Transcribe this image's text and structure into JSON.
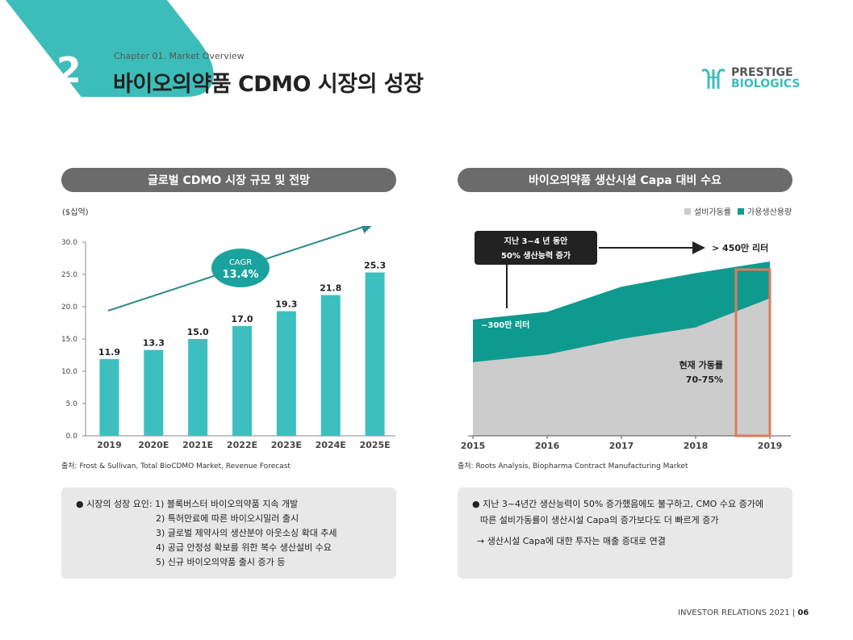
{
  "header": {
    "section_number": "2",
    "chapter": "Chapter 01. Market Overview",
    "title": "바이오의약품 CDMO 시장의 성장",
    "logo_line1": "PRESTIGE",
    "logo_line2": "BIOLOGICS"
  },
  "left_panel": {
    "heading": "글로벌 CDMO 시장 규모 및 전망",
    "unit": "($십억)",
    "cagr_label": "CAGR",
    "cagr_value": "13.4%",
    "source": "출처: Frost & Sullivan, Total BioCDMO Market, Revenue Forecast",
    "note_lines": [
      "● 시장의 성장 요인: 1) 블록버스터 바이오의약품 지속 개발",
      "2) 특허만료에 따른 바이오시밀러 출시",
      "3) 글로벌 제약사의 생산분야 아웃소싱 확대 추세",
      "4) 공급 안정성 확보를 위한 복수 생산설비 수요",
      "5) 신규 바이오의약품 출시 증가 등"
    ]
  },
  "right_panel": {
    "heading": "바이오의약품 생산시설 Capa 대비 수요",
    "legend": [
      {
        "label": "설비가동률",
        "color": "#cccccc"
      },
      {
        "label": "가용생산용량",
        "color": "#0f9a8f"
      }
    ],
    "callout_line1": "지난 3~4 년 동안",
    "callout_line2": "50% 생산능력 증가",
    "arrow_label": "> 450만 리터",
    "capacity_label": "~300만 리터",
    "utilization_line1": "현재 가동률",
    "utilization_line2": "70-75%",
    "source": "출처: Roots Analysis, Biopharma Contract Manufacturing Market",
    "note_lines": [
      "● 지난 3~4년간 생산능력이 50% 증가했음에도 불구하고, CMO 수요 증가에",
      "따른 설비가동률이 생산시설 Capa의 증가보다도 더 빠르게 증가",
      "→ 생산시설 Capa에 대한 투자는 매출 증대로 연결"
    ]
  },
  "chart_data": [
    {
      "type": "bar",
      "categories": [
        "2019",
        "2020E",
        "2021E",
        "2022E",
        "2023E",
        "2024E",
        "2025E"
      ],
      "values": [
        11.9,
        13.3,
        15.0,
        17.0,
        19.3,
        21.8,
        25.3
      ],
      "value_labels": [
        "11.9",
        "13.3",
        "15.0",
        "17.0",
        "19.3",
        "21.8",
        "25.3"
      ],
      "yticks": [
        "0.0",
        "5.0",
        "10.0",
        "15.0",
        "20.0",
        "25.0",
        "30.0"
      ],
      "ylim": [
        0,
        30
      ],
      "bar_color": "#3dbfbf",
      "grid": false
    },
    {
      "type": "area",
      "x": [
        2015,
        2016,
        2017,
        2018,
        2019
      ],
      "xticks": [
        "2015",
        "2016",
        "2017",
        "2018",
        "2019"
      ],
      "series": [
        {
          "name": "설비가동률",
          "values": [
            1.9,
            2.1,
            2.5,
            2.8,
            3.55
          ],
          "color": "#cccccc"
        },
        {
          "name": "가용생산용량",
          "values": [
            3.0,
            3.2,
            3.85,
            4.2,
            4.5
          ],
          "color": "#0f9a8f"
        }
      ],
      "ylim": [
        0,
        5
      ],
      "highlight_x": 2019,
      "highlight_color": "#e07a5f"
    }
  ],
  "footer": {
    "text": "INVESTOR RELATIONS 2021",
    "page": "06"
  }
}
